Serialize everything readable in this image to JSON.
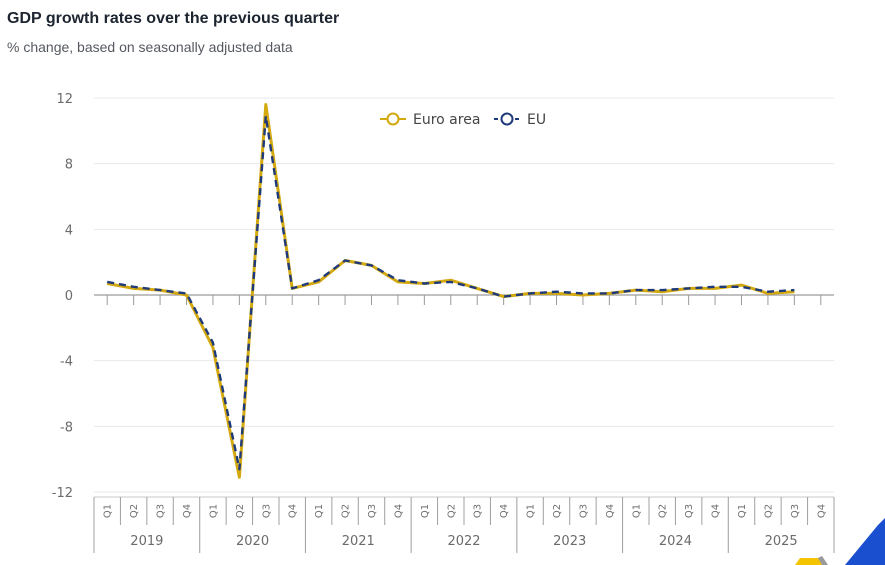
{
  "header": {
    "title": "GDP growth rates over the previous quarter",
    "subtitle": "% change, based on seasonally adjusted data"
  },
  "legend": [
    {
      "label": "Euro area",
      "color": "#d4a90f",
      "marker": "open-circle",
      "style": "solid"
    },
    {
      "label": "EU",
      "color": "#1f3a7a",
      "marker": "open-circle",
      "style": "dashed"
    }
  ],
  "colors": {
    "euro_area": "#d4a90f",
    "eu": "#1f3a7a",
    "grid": "#e8e8ec",
    "axis": "#9a9a9a",
    "logo_blue": "#1a4fd0",
    "logo_yellow": "#f5c400"
  },
  "chart_data": {
    "type": "line",
    "title": "GDP growth rates over the previous quarter",
    "subtitle": "% change, based on seasonally adjusted data",
    "xlabel": "",
    "ylabel": "",
    "ylim": [
      -12,
      12
    ],
    "yticks": [
      12,
      8,
      4,
      0,
      -4,
      -8,
      -12
    ],
    "grid": true,
    "legend_position": "top-center",
    "years": [
      "2019",
      "2020",
      "2021",
      "2022",
      "2023",
      "2024",
      "2025"
    ],
    "quarters": [
      "Q1",
      "Q2",
      "Q3",
      "Q4"
    ],
    "categories": [
      "2019 Q1",
      "2019 Q2",
      "2019 Q3",
      "2019 Q4",
      "2020 Q1",
      "2020 Q2",
      "2020 Q3",
      "2020 Q4",
      "2021 Q1",
      "2021 Q2",
      "2021 Q3",
      "2021 Q4",
      "2022 Q1",
      "2022 Q2",
      "2022 Q3",
      "2022 Q4",
      "2023 Q1",
      "2023 Q2",
      "2023 Q3",
      "2023 Q4",
      "2024 Q1",
      "2024 Q2",
      "2024 Q3",
      "2024 Q4",
      "2025 Q1",
      "2025 Q2",
      "2025 Q3",
      "2025 Q4"
    ],
    "series": [
      {
        "name": "Euro area",
        "values": [
          0.7,
          0.4,
          0.3,
          0.0,
          -3.2,
          -11.1,
          11.6,
          0.4,
          0.8,
          2.1,
          1.8,
          0.8,
          0.7,
          0.9,
          0.4,
          -0.1,
          0.1,
          0.1,
          0.0,
          0.1,
          0.3,
          0.2,
          0.4,
          0.4,
          0.6,
          0.1,
          0.2,
          null
        ]
      },
      {
        "name": "EU",
        "values": [
          0.8,
          0.5,
          0.3,
          0.1,
          -2.9,
          -10.6,
          10.9,
          0.4,
          0.9,
          2.1,
          1.8,
          0.9,
          0.7,
          0.8,
          0.4,
          -0.1,
          0.1,
          0.2,
          0.1,
          0.1,
          0.3,
          0.3,
          0.4,
          0.5,
          0.5,
          0.2,
          0.3,
          null
        ]
      }
    ]
  }
}
